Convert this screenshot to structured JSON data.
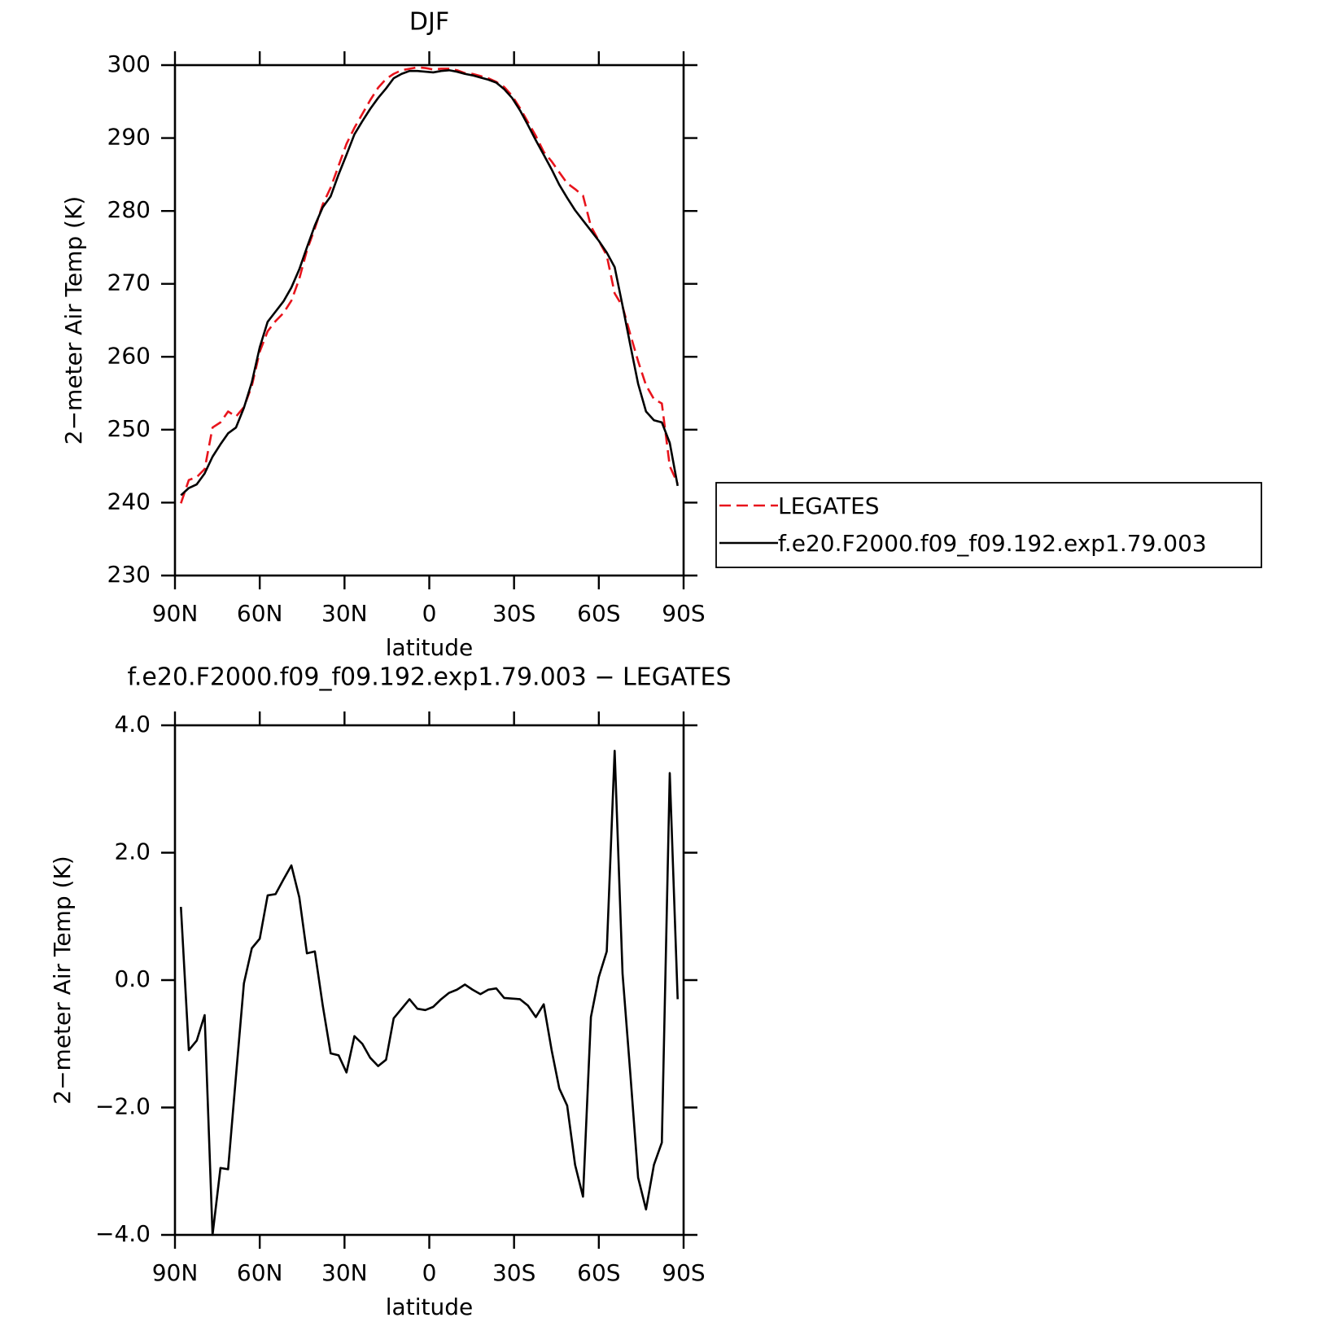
{
  "chart_data": [
    {
      "type": "line",
      "title": "DJF",
      "xlabel": "latitude",
      "ylabel": "2−meter Air Temp (K)",
      "x": [
        87.9,
        85.1,
        82.3,
        79.5,
        76.7,
        73.9,
        71.2,
        68.4,
        65.6,
        62.8,
        60.0,
        57.2,
        54.4,
        51.6,
        48.8,
        46.0,
        43.3,
        40.5,
        37.7,
        34.9,
        32.1,
        29.3,
        26.5,
        23.7,
        20.9,
        18.1,
        15.3,
        12.6,
        9.8,
        7.0,
        4.2,
        1.4,
        -1.4,
        -4.2,
        -7.0,
        -9.8,
        -12.6,
        -15.3,
        -18.1,
        -20.9,
        -23.7,
        -26.5,
        -29.3,
        -32.1,
        -34.9,
        -37.7,
        -40.5,
        -43.3,
        -46.0,
        -48.8,
        -51.6,
        -54.4,
        -57.2,
        -60.0,
        -62.8,
        -65.6,
        -68.4,
        -71.2,
        -73.9,
        -76.7,
        -79.5,
        -82.3,
        -85.1,
        -87.9
      ],
      "series": [
        {
          "name": "LEGATES",
          "color": "#e8141c",
          "dashed": true,
          "values": [
            239.9,
            243.1,
            243.5,
            244.6,
            250.3,
            251.0,
            252.5,
            251.8,
            253.1,
            256.0,
            260.7,
            263.5,
            264.9,
            266.0,
            267.7,
            270.7,
            274.6,
            277.6,
            280.9,
            283.2,
            286.2,
            289.2,
            291.4,
            293.3,
            295.2,
            296.9,
            298.1,
            298.8,
            299.3,
            299.5,
            299.7,
            299.6,
            299.4,
            299.5,
            299.5,
            299.3,
            298.9,
            298.8,
            298.5,
            298.2,
            297.7,
            297.0,
            295.8,
            294.1,
            292.2,
            290.3,
            288.1,
            286.8,
            285.3,
            283.8,
            283.0,
            282.1,
            277.9,
            275.9,
            273.9,
            268.7,
            266.9,
            263.0,
            259.4,
            256.1,
            254.2,
            253.6,
            245.0,
            242.6
          ]
        },
        {
          "name": "f.e20.F2000.f09_f09.192.exp1.79.003",
          "color": "#000000",
          "dashed": false,
          "values": [
            241.0,
            242.0,
            242.5,
            244.0,
            246.3,
            248.0,
            249.5,
            250.3,
            253.0,
            256.5,
            261.3,
            264.8,
            266.2,
            267.6,
            269.5,
            272.0,
            275.0,
            278.0,
            280.5,
            282.0,
            285.0,
            287.7,
            290.5,
            292.3,
            294.0,
            295.5,
            296.8,
            298.2,
            298.8,
            299.2,
            299.2,
            299.1,
            299.0,
            299.2,
            299.3,
            299.1,
            298.8,
            298.6,
            298.3,
            298.0,
            297.6,
            296.7,
            295.5,
            293.8,
            291.8,
            289.7,
            287.7,
            285.7,
            283.6,
            281.8,
            280.1,
            278.7,
            277.3,
            275.9,
            274.3,
            272.3,
            267.0,
            261.5,
            256.3,
            252.5,
            251.3,
            251.0,
            248.2,
            242.3
          ]
        }
      ],
      "xlim": [
        90,
        -90
      ],
      "xticks": [
        {
          "value": 90,
          "label": "90N"
        },
        {
          "value": 60,
          "label": "60N"
        },
        {
          "value": 30,
          "label": "30N"
        },
        0,
        {
          "value": -30,
          "label": "30S"
        },
        {
          "value": -60,
          "label": "60S"
        },
        {
          "value": -90,
          "label": "90S"
        }
      ],
      "ylim": [
        230,
        300
      ],
      "yticks": [
        230,
        240,
        250,
        260,
        270,
        280,
        290,
        300
      ],
      "legend": "outside-right"
    },
    {
      "type": "line",
      "title": "f.e20.F2000.f09_f09.192.exp1.79.003 − LEGATES",
      "xlabel": "latitude",
      "ylabel": "2−meter Air Temp (K)",
      "x": [
        87.9,
        85.1,
        82.3,
        79.5,
        76.7,
        73.9,
        71.2,
        68.4,
        65.6,
        62.8,
        60.0,
        57.2,
        54.4,
        51.6,
        48.8,
        46.0,
        43.3,
        40.5,
        37.7,
        34.9,
        32.1,
        29.3,
        26.5,
        23.7,
        20.9,
        18.1,
        15.3,
        12.6,
        9.8,
        7.0,
        4.2,
        1.4,
        -1.4,
        -4.2,
        -7.0,
        -9.8,
        -12.6,
        -15.3,
        -18.1,
        -20.9,
        -23.7,
        -26.5,
        -29.3,
        -32.1,
        -34.9,
        -37.7,
        -40.5,
        -43.3,
        -46.0,
        -48.8,
        -51.6,
        -54.4,
        -57.2,
        -60.0,
        -62.8,
        -65.6,
        -68.4,
        -71.2,
        -73.9,
        -76.7,
        -79.5,
        -82.3,
        -85.1,
        -87.9
      ],
      "values": [
        1.15,
        -1.1,
        -0.95,
        -0.55,
        -4.0,
        -2.95,
        -2.97,
        -1.5,
        -0.05,
        0.5,
        0.65,
        1.33,
        1.35,
        1.58,
        1.8,
        1.3,
        0.42,
        0.45,
        -0.4,
        -1.15,
        -1.18,
        -1.45,
        -0.88,
        -1.0,
        -1.22,
        -1.35,
        -1.25,
        -0.6,
        -0.45,
        -0.3,
        -0.45,
        -0.47,
        -0.42,
        -0.3,
        -0.2,
        -0.15,
        -0.07,
        -0.15,
        -0.22,
        -0.15,
        -0.13,
        -0.28,
        -0.29,
        -0.3,
        -0.4,
        -0.58,
        -0.38,
        -1.1,
        -1.7,
        -1.97,
        -2.9,
        -3.4,
        -0.58,
        0.05,
        0.45,
        3.6,
        0.1,
        -1.5,
        -3.1,
        -3.6,
        -2.9,
        -2.55,
        3.25,
        -0.3
      ],
      "color": "#000000",
      "xlim": [
        90,
        -90
      ],
      "xticks": [
        {
          "value": 90,
          "label": "90N"
        },
        {
          "value": 60,
          "label": "60N"
        },
        {
          "value": 30,
          "label": "30N"
        },
        0,
        {
          "value": -30,
          "label": "30S"
        },
        {
          "value": -60,
          "label": "60S"
        },
        {
          "value": -90,
          "label": "90S"
        }
      ],
      "ylim": [
        -4,
        4
      ],
      "yticks": [
        {
          "value": -4,
          "label": "−4.0"
        },
        {
          "value": -2,
          "label": "−2.0"
        },
        {
          "value": 0,
          "label": "0.0"
        },
        {
          "value": 2,
          "label": "2.0"
        },
        {
          "value": 4,
          "label": "4.0"
        }
      ]
    }
  ]
}
